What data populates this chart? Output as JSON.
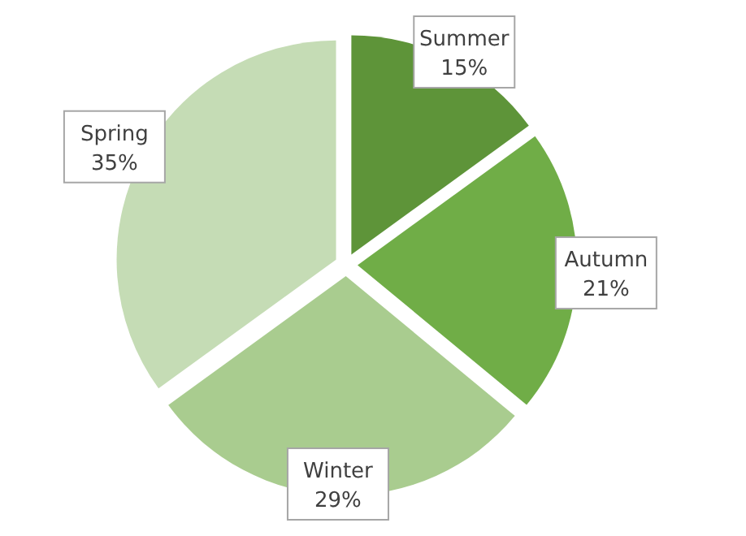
{
  "chart_data": {
    "type": "pie",
    "categories": [
      "Summer",
      "Autumn",
      "Winter",
      "Spring"
    ],
    "values": [
      15,
      21,
      29,
      35
    ],
    "value_labels": [
      "15%",
      "21%",
      "29%",
      "35%"
    ],
    "colors": [
      "#5e9439",
      "#70ad47",
      "#a9cc8f",
      "#c5dcb5"
    ]
  }
}
